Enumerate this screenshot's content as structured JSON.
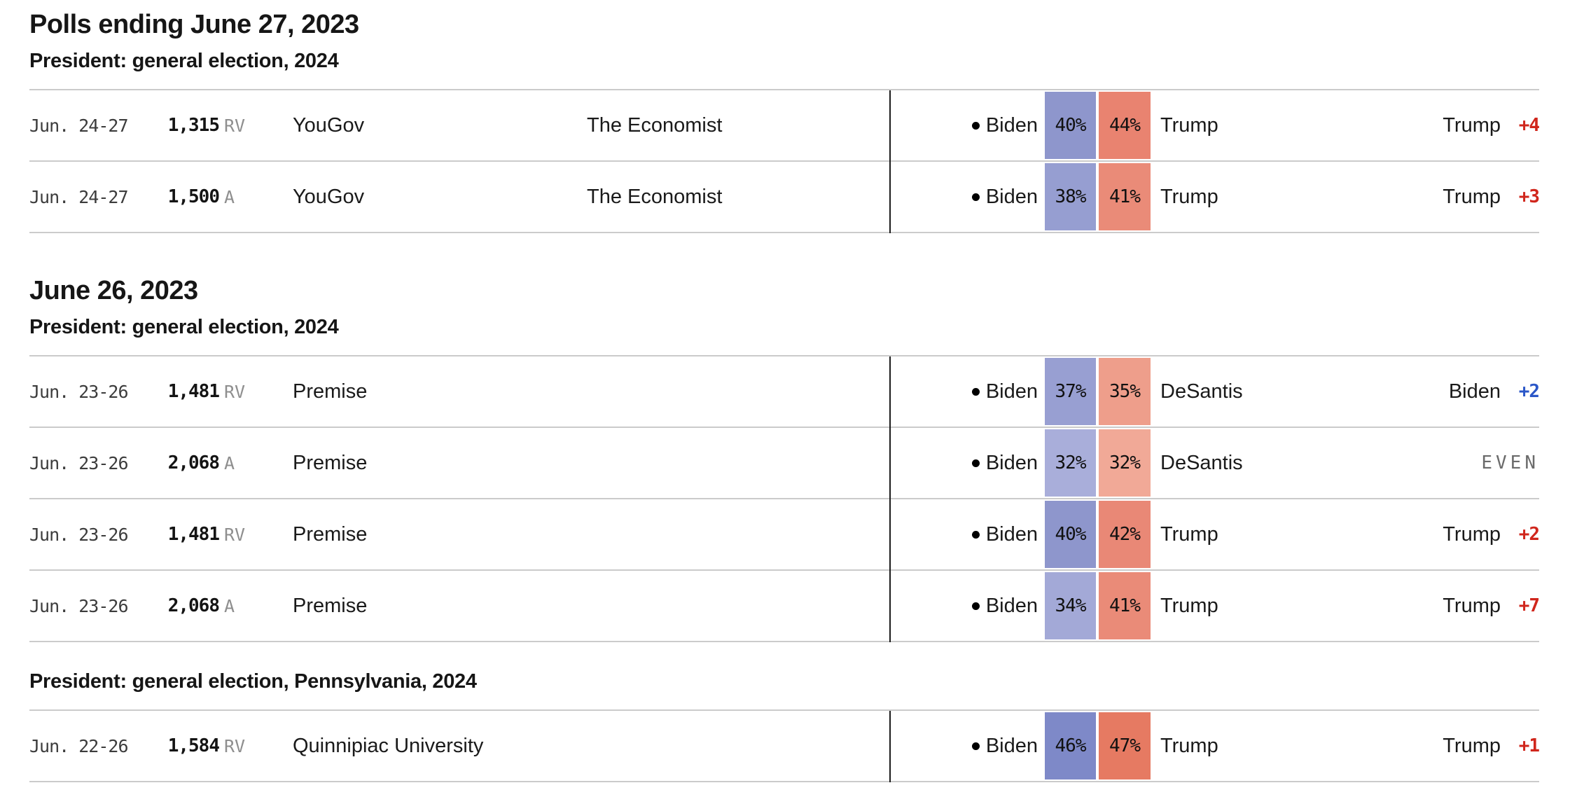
{
  "colors": {
    "rep_margin": "#d0261c",
    "dem_margin": "#2b57c8",
    "even_text": "#6b6b6b",
    "row_border": "#cbcbcb",
    "divider": "#1c1c1c"
  },
  "sections": [
    {
      "date_header": "Polls ending June 27, 2023",
      "race_header": "President: general election, 2024",
      "rows": [
        {
          "dates": "Jun. 24-27",
          "sample": "1,315",
          "sample_type": "RV",
          "pollster": "YouGov",
          "sponsor": "The Economist",
          "cand1": {
            "name": "Biden",
            "pct": "40%",
            "cell_color": "#8e96cc",
            "incumbent_dot": true
          },
          "cand2": {
            "name": "Trump",
            "pct": "44%",
            "cell_color": "#e98370"
          },
          "result": {
            "leader": "Trump",
            "margin": "+4",
            "party": "rep"
          }
        },
        {
          "dates": "Jun. 24-27",
          "sample": "1,500",
          "sample_type": "A",
          "pollster": "YouGov",
          "sponsor": "The Economist",
          "cand1": {
            "name": "Biden",
            "pct": "38%",
            "cell_color": "#969ed1",
            "incumbent_dot": true
          },
          "cand2": {
            "name": "Trump",
            "pct": "41%",
            "cell_color": "#ea8b78"
          },
          "result": {
            "leader": "Trump",
            "margin": "+3",
            "party": "rep"
          }
        }
      ]
    },
    {
      "date_header": "June 26, 2023",
      "race_header": "President: general election, 2024",
      "rows": [
        {
          "dates": "Jun. 23-26",
          "sample": "1,481",
          "sample_type": "RV",
          "pollster": "Premise",
          "sponsor": "",
          "cand1": {
            "name": "Biden",
            "pct": "37%",
            "cell_color": "#989fd2",
            "incumbent_dot": true
          },
          "cand2": {
            "name": "DeSantis",
            "pct": "35%",
            "cell_color": "#ee9e8b"
          },
          "result": {
            "leader": "Biden",
            "margin": "+2",
            "party": "dem"
          }
        },
        {
          "dates": "Jun. 23-26",
          "sample": "2,068",
          "sample_type": "A",
          "pollster": "Premise",
          "sponsor": "",
          "cand1": {
            "name": "Biden",
            "pct": "32%",
            "cell_color": "#a9aeda",
            "incumbent_dot": true
          },
          "cand2": {
            "name": "DeSantis",
            "pct": "32%",
            "cell_color": "#f1a997"
          },
          "result": {
            "leader": "",
            "margin": "EVEN",
            "party": "even"
          }
        },
        {
          "dates": "Jun. 23-26",
          "sample": "1,481",
          "sample_type": "RV",
          "pollster": "Premise",
          "sponsor": "",
          "cand1": {
            "name": "Biden",
            "pct": "40%",
            "cell_color": "#8e96cc",
            "incumbent_dot": true
          },
          "cand2": {
            "name": "Trump",
            "pct": "42%",
            "cell_color": "#e98876"
          },
          "result": {
            "leader": "Trump",
            "margin": "+2",
            "party": "rep"
          }
        },
        {
          "dates": "Jun. 23-26",
          "sample": "2,068",
          "sample_type": "A",
          "pollster": "Premise",
          "sponsor": "",
          "cand1": {
            "name": "Biden",
            "pct": "34%",
            "cell_color": "#a3a9d7",
            "incumbent_dot": true
          },
          "cand2": {
            "name": "Trump",
            "pct": "41%",
            "cell_color": "#ea8b78"
          },
          "result": {
            "leader": "Trump",
            "margin": "+7",
            "party": "rep"
          }
        }
      ]
    },
    {
      "date_header": "",
      "race_header": "President: general election, Pennsylvania, 2024",
      "rows": [
        {
          "dates": "Jun. 22-26",
          "sample": "1,584",
          "sample_type": "RV",
          "pollster": "Quinnipiac University",
          "sponsor": "",
          "cand1": {
            "name": "Biden",
            "pct": "46%",
            "cell_color": "#7e89c8",
            "incumbent_dot": true
          },
          "cand2": {
            "name": "Trump",
            "pct": "47%",
            "cell_color": "#e67a62"
          },
          "result": {
            "leader": "Trump",
            "margin": "+1",
            "party": "rep"
          }
        }
      ]
    }
  ]
}
